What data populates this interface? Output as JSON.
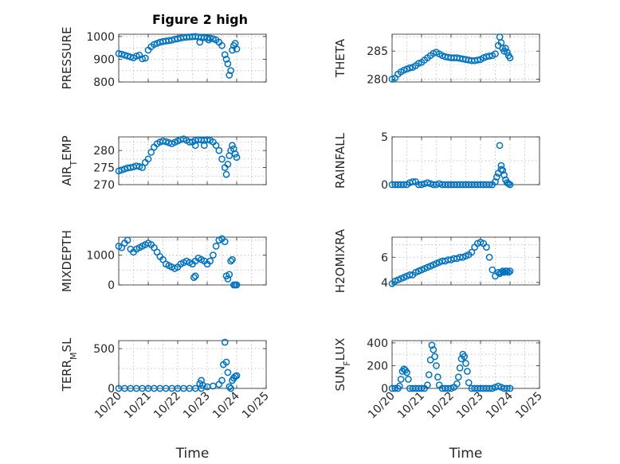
{
  "figure": {
    "title": "Figure 2 high",
    "marker_color": "#0072BD"
  },
  "chart_data": [
    {
      "type": "scatter",
      "panel": "pressure",
      "ylabel": "PRESSURE",
      "xlabel": "",
      "xlim": [
        20,
        25
      ],
      "ylim": [
        800,
        1010
      ],
      "yticks": [
        800,
        900,
        1000
      ],
      "xticks": [
        20,
        21,
        22,
        23,
        24,
        25
      ],
      "xticklabels": [],
      "grid": true,
      "title": "Figure 2 high",
      "series": [
        {
          "x": [
            20.0,
            20.1,
            20.2,
            20.3,
            20.4,
            20.5,
            20.6,
            20.7,
            20.8,
            20.9,
            21.0,
            21.1,
            21.2,
            21.3,
            21.4,
            21.5,
            21.6,
            21.7,
            21.8,
            21.9,
            22.0,
            22.1,
            22.2,
            22.3,
            22.4,
            22.5,
            22.6,
            22.7,
            22.8,
            22.9,
            23.0,
            23.1,
            23.2,
            23.3,
            23.4,
            23.5,
            23.6,
            23.65,
            23.7,
            23.75,
            23.8,
            23.85,
            23.9,
            23.95,
            24.0,
            22.75,
            23.05
          ],
          "y": [
            925,
            922,
            918,
            914,
            910,
            906,
            914,
            918,
            902,
            905,
            940,
            955,
            965,
            970,
            975,
            978,
            980,
            982,
            984,
            988,
            990,
            993,
            996,
            997,
            998,
            999,
            1000,
            998,
            996,
            995,
            994,
            993,
            990,
            985,
            975,
            960,
            920,
            900,
            880,
            830,
            850,
            940,
            960,
            970,
            945,
            975,
            985
          ]
        }
      ]
    },
    {
      "type": "scatter",
      "panel": "theta",
      "ylabel": "THETA",
      "xlabel": "",
      "xlim": [
        20,
        25
      ],
      "ylim": [
        279.5,
        288
      ],
      "yticks": [
        280,
        285
      ],
      "xticks": [
        20,
        21,
        22,
        23,
        24,
        25
      ],
      "xticklabels": [],
      "grid": true,
      "series": [
        {
          "x": [
            20.0,
            20.1,
            20.2,
            20.3,
            20.4,
            20.5,
            20.6,
            20.7,
            20.8,
            20.9,
            21.0,
            21.1,
            21.2,
            21.3,
            21.4,
            21.5,
            21.6,
            21.7,
            21.8,
            21.9,
            22.0,
            22.1,
            22.2,
            22.3,
            22.4,
            22.5,
            22.6,
            22.7,
            22.8,
            22.9,
            23.0,
            23.1,
            23.2,
            23.3,
            23.4,
            23.5,
            23.6,
            23.65,
            23.7,
            23.75,
            23.8,
            23.85,
            23.9,
            23.95,
            24.0
          ],
          "y": [
            280.0,
            280.2,
            280.9,
            281.3,
            281.6,
            281.8,
            282.0,
            282.1,
            282.4,
            282.8,
            283.0,
            283.4,
            283.8,
            284.2,
            284.6,
            284.8,
            284.5,
            284.2,
            284.0,
            283.9,
            283.8,
            283.8,
            283.8,
            283.7,
            283.6,
            283.5,
            283.4,
            283.3,
            283.3,
            283.4,
            283.5,
            283.8,
            284.0,
            284.1,
            284.2,
            284.5,
            286.0,
            287.5,
            286.5,
            285.5,
            285.0,
            285.5,
            284.8,
            284.2,
            283.8
          ]
        }
      ]
    },
    {
      "type": "scatter",
      "panel": "air_temp",
      "ylabel": "AIR_TEMP",
      "xlabel": "",
      "xlim": [
        20,
        25
      ],
      "ylim": [
        270,
        284
      ],
      "yticks": [
        270,
        275,
        280
      ],
      "xticks": [
        20,
        21,
        22,
        23,
        24,
        25
      ],
      "xticklabels": [],
      "grid": true,
      "series": [
        {
          "x": [
            20.0,
            20.1,
            20.2,
            20.3,
            20.4,
            20.5,
            20.6,
            20.7,
            20.8,
            20.9,
            21.0,
            21.1,
            21.2,
            21.3,
            21.4,
            21.5,
            21.6,
            21.7,
            21.8,
            21.9,
            22.0,
            22.1,
            22.2,
            22.3,
            22.4,
            22.5,
            22.6,
            22.7,
            22.8,
            22.9,
            23.0,
            23.1,
            23.2,
            23.3,
            23.4,
            23.5,
            23.6,
            23.65,
            23.7,
            23.75,
            23.8,
            23.85,
            23.9,
            23.95,
            24.0,
            22.6,
            22.9
          ],
          "y": [
            274.0,
            274.3,
            274.6,
            274.9,
            275.0,
            275.2,
            275.5,
            275.3,
            275.0,
            276.5,
            277.5,
            279.5,
            281.0,
            282.0,
            282.5,
            282.8,
            282.6,
            282.3,
            282.0,
            282.4,
            282.8,
            283.2,
            283.4,
            283.0,
            282.5,
            282.5,
            283.0,
            283.2,
            283.1,
            283.0,
            283.2,
            283.0,
            282.5,
            281.5,
            280.0,
            277.5,
            275.0,
            273.0,
            276.0,
            278.5,
            280.0,
            281.5,
            280.5,
            279.0,
            278.0,
            281.5,
            281.5
          ]
        }
      ]
    },
    {
      "type": "scatter",
      "panel": "rainfall",
      "ylabel": "RAINFALL",
      "xlabel": "",
      "xlim": [
        20,
        25
      ],
      "ylim": [
        0,
        5
      ],
      "yticks": [
        0,
        5
      ],
      "xticks": [
        20,
        21,
        22,
        23,
        24,
        25
      ],
      "xticklabels": [],
      "grid": true,
      "series": [
        {
          "x": [
            20.0,
            20.1,
            20.2,
            20.3,
            20.4,
            20.5,
            20.6,
            20.7,
            20.8,
            20.9,
            21.0,
            21.1,
            21.2,
            21.3,
            21.4,
            21.5,
            21.6,
            21.7,
            21.8,
            21.9,
            22.0,
            22.1,
            22.2,
            22.3,
            22.4,
            22.5,
            22.6,
            22.7,
            22.8,
            22.9,
            23.0,
            23.1,
            23.2,
            23.3,
            23.4,
            23.5,
            23.6,
            23.65,
            23.7,
            23.75,
            23.8,
            23.85,
            23.9,
            23.95,
            24.0,
            23.55,
            23.7
          ],
          "y": [
            0,
            0,
            0,
            0,
            0,
            0,
            0.2,
            0.3,
            0.3,
            0,
            0,
            0.1,
            0.2,
            0.1,
            0,
            0,
            0.1,
            0,
            0,
            0,
            0,
            0,
            0,
            0,
            0,
            0,
            0,
            0,
            0,
            0,
            0,
            0,
            0,
            0,
            0,
            0.3,
            1.2,
            4.1,
            2.0,
            1.5,
            1.0,
            0.5,
            0.2,
            0.1,
            0,
            0.8,
            1.6
          ]
        }
      ]
    },
    {
      "type": "scatter",
      "panel": "mixdepth",
      "ylabel": "MIXDEPTH",
      "xlabel": "",
      "xlim": [
        20,
        25
      ],
      "ylim": [
        0,
        1600
      ],
      "yticks": [
        0,
        1000
      ],
      "xticks": [
        20,
        21,
        22,
        23,
        24,
        25
      ],
      "xticklabels": [],
      "grid": true,
      "series": [
        {
          "x": [
            20.0,
            20.1,
            20.2,
            20.3,
            20.4,
            20.5,
            20.6,
            20.7,
            20.8,
            20.9,
            21.0,
            21.1,
            21.2,
            21.3,
            21.4,
            21.5,
            21.6,
            21.7,
            21.8,
            21.9,
            22.0,
            22.1,
            22.2,
            22.3,
            22.4,
            22.5,
            22.6,
            22.7,
            22.8,
            22.9,
            23.0,
            23.1,
            23.2,
            23.3,
            23.4,
            23.5,
            23.6,
            23.65,
            23.7,
            23.75,
            23.8,
            23.85,
            23.9,
            23.95,
            24.0,
            22.55,
            22.6
          ],
          "y": [
            1300,
            1250,
            1400,
            1500,
            1200,
            1100,
            1200,
            1250,
            1300,
            1350,
            1400,
            1350,
            1250,
            1100,
            950,
            850,
            700,
            650,
            600,
            550,
            600,
            700,
            750,
            800,
            750,
            700,
            800,
            900,
            850,
            800,
            700,
            800,
            1000,
            1300,
            1500,
            1550,
            1450,
            300,
            200,
            350,
            800,
            850,
            0,
            0,
            0,
            250,
            300
          ]
        }
      ]
    },
    {
      "type": "scatter",
      "panel": "h2omixra",
      "ylabel": "H2OMIXRA",
      "xlabel": "",
      "xlim": [
        20,
        25
      ],
      "ylim": [
        3.8,
        7.6
      ],
      "yticks": [
        4,
        6
      ],
      "xticks": [
        20,
        21,
        22,
        23,
        24,
        25
      ],
      "xticklabels": [],
      "grid": true,
      "series": [
        {
          "x": [
            20.0,
            20.1,
            20.2,
            20.3,
            20.4,
            20.5,
            20.6,
            20.7,
            20.8,
            20.9,
            21.0,
            21.1,
            21.2,
            21.3,
            21.4,
            21.5,
            21.6,
            21.7,
            21.8,
            21.9,
            22.0,
            22.1,
            22.2,
            22.3,
            22.4,
            22.5,
            22.6,
            22.7,
            22.8,
            22.9,
            23.0,
            23.1,
            23.2,
            23.3,
            23.4,
            23.5,
            23.6,
            23.65,
            23.7,
            23.75,
            23.8,
            23.85,
            23.9,
            23.95,
            24.0
          ],
          "y": [
            3.9,
            4.1,
            4.2,
            4.3,
            4.4,
            4.5,
            4.6,
            4.6,
            4.8,
            4.9,
            5.0,
            5.1,
            5.2,
            5.3,
            5.4,
            5.5,
            5.6,
            5.7,
            5.7,
            5.8,
            5.8,
            5.9,
            5.9,
            6.0,
            6.0,
            6.1,
            6.2,
            6.4,
            6.8,
            7.1,
            7.2,
            7.1,
            6.8,
            6.0,
            5.0,
            4.5,
            4.8,
            4.7,
            4.8,
            4.9,
            4.8,
            4.9,
            4.9,
            4.8,
            4.9
          ]
        }
      ]
    },
    {
      "type": "scatter",
      "panel": "terr_msl",
      "ylabel": "TERR_MSL",
      "xlabel": "Time",
      "xlim": [
        20,
        25
      ],
      "ylim": [
        0,
        600
      ],
      "yticks": [
        0,
        500
      ],
      "xticks": [
        20,
        21,
        22,
        23,
        24,
        25
      ],
      "xticklabels": [
        "10/20",
        "10/21",
        "10/22",
        "10/23",
        "10/24",
        "10/25"
      ],
      "grid": true,
      "series": [
        {
          "x": [
            20.0,
            20.2,
            20.4,
            20.6,
            20.8,
            21.0,
            21.2,
            21.4,
            21.6,
            21.8,
            22.0,
            22.2,
            22.4,
            22.6,
            22.8,
            23.0,
            23.2,
            23.4,
            23.5,
            23.55,
            23.6,
            23.65,
            23.7,
            23.75,
            23.8,
            23.85,
            23.9,
            23.95,
            24.0,
            22.75,
            22.8,
            22.85
          ],
          "y": [
            0,
            0,
            0,
            0,
            0,
            0,
            0,
            0,
            0,
            0,
            0,
            0,
            0,
            0,
            0,
            20,
            30,
            50,
            100,
            300,
            580,
            330,
            200,
            20,
            0,
            100,
            130,
            150,
            160,
            60,
            100,
            40
          ]
        }
      ]
    },
    {
      "type": "scatter",
      "panel": "sun_flux",
      "ylabel": "SUN_FLUX",
      "xlabel": "Time",
      "xlim": [
        20,
        25
      ],
      "ylim": [
        0,
        420
      ],
      "yticks": [
        0,
        200,
        400
      ],
      "xticks": [
        20,
        21,
        22,
        23,
        24,
        25
      ],
      "xticklabels": [
        "10/20",
        "10/21",
        "10/22",
        "10/23",
        "10/24",
        "10/25"
      ],
      "grid": true,
      "series": [
        {
          "x": [
            20.0,
            20.1,
            20.2,
            20.25,
            20.3,
            20.35,
            20.4,
            20.45,
            20.5,
            20.55,
            20.6,
            20.7,
            20.8,
            20.9,
            21.0,
            21.1,
            21.2,
            21.25,
            21.3,
            21.35,
            21.4,
            21.45,
            21.5,
            21.55,
            21.6,
            21.7,
            21.8,
            21.9,
            22.0,
            22.1,
            22.2,
            22.25,
            22.3,
            22.35,
            22.4,
            22.45,
            22.5,
            22.55,
            22.6,
            22.7,
            22.8,
            22.9,
            23.0,
            23.1,
            23.2,
            23.3,
            23.4,
            23.5,
            23.6,
            23.7,
            23.8,
            23.9,
            24.0
          ],
          "y": [
            0,
            0,
            0,
            20,
            80,
            150,
            170,
            160,
            140,
            80,
            0,
            0,
            0,
            0,
            0,
            0,
            30,
            120,
            250,
            380,
            340,
            280,
            200,
            100,
            30,
            0,
            0,
            0,
            0,
            10,
            40,
            100,
            180,
            260,
            300,
            280,
            220,
            150,
            50,
            0,
            0,
            0,
            0,
            0,
            0,
            0,
            0,
            10,
            20,
            10,
            0,
            0,
            0
          ]
        }
      ]
    }
  ]
}
